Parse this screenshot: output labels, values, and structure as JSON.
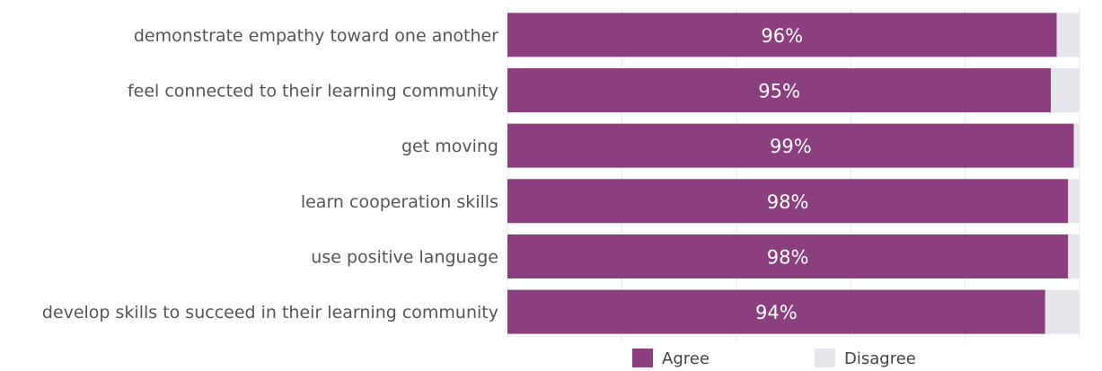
{
  "chart_data": {
    "type": "bar",
    "orientation": "horizontal",
    "stacked": true,
    "categories": [
      "demonstrate empathy toward one another",
      "feel connected to their learning community",
      "get moving",
      "learn cooperation skills",
      "use positive language",
      "develop skills to succeed in their learning community"
    ],
    "series": [
      {
        "name": "Agree",
        "values": [
          96,
          95,
          99,
          98,
          98,
          94
        ],
        "labels": [
          "96%",
          "95%",
          "99%",
          "98%",
          "98%",
          "94%"
        ]
      },
      {
        "name": "Disagree",
        "values": [
          4,
          5,
          1,
          2,
          2,
          6
        ]
      }
    ],
    "xlim": [
      0,
      100
    ],
    "grid": true,
    "legend": "bottom-center"
  },
  "colors": {
    "agree": "#8b3f7f",
    "disagree": "#e4e6ec",
    "grid": "#e8e8e8"
  }
}
